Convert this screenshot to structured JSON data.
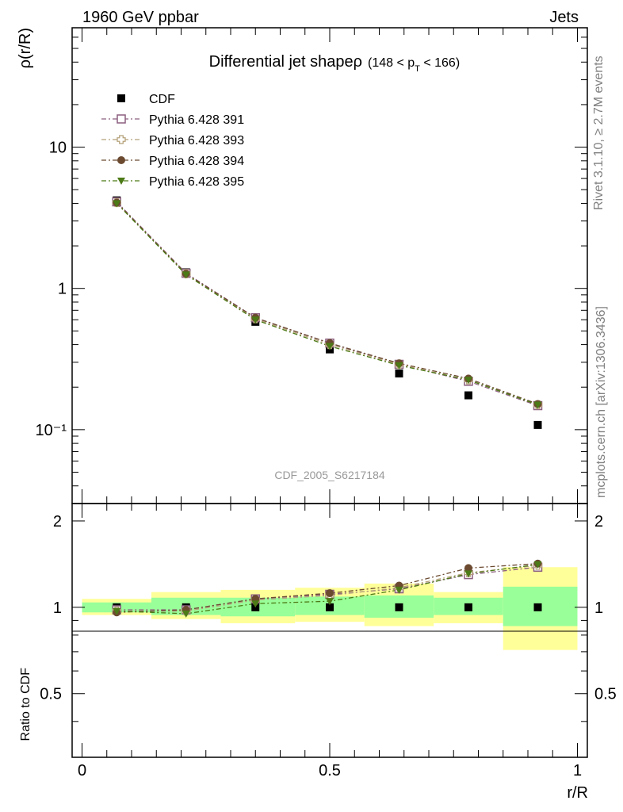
{
  "header": {
    "left": "1960 GeV ppbar",
    "right": "Jets"
  },
  "side_labels": {
    "top": "Rivet 3.1.10, ≥ 2.7M events",
    "bottom": "mcplots.cern.ch [arXiv:1306.3436]"
  },
  "watermark": "CDF_2005_S6217184",
  "colors": {
    "cdf": "#000000",
    "p391": "#8b5f7f",
    "p393": "#b5a27a",
    "p394": "#6b4a30",
    "p395": "#4c7a16",
    "band_yellow": "#ffff99",
    "band_green": "#99ff99"
  },
  "chart_data": {
    "type": "line",
    "title": "Differential jet shapeρ",
    "title_range": "(148 < p_T < 166)",
    "xlabel": "r/R",
    "ylabel": "ρ(r/R)",
    "ratio_ylabel": "Ratio to CDF",
    "xlim": [
      -0.02,
      1.02
    ],
    "ylim": [
      0.03,
      70
    ],
    "ylog": true,
    "ratio_ylim": [
      0.3,
      2.3
    ],
    "ratio_ylog": true,
    "x_ticks": [
      "0",
      "0.5",
      "1"
    ],
    "y_ticks": [
      "10⁻¹",
      "1",
      "10"
    ],
    "ratio_ticks": [
      "0.5",
      "1",
      "2"
    ],
    "legend_position": "top-left",
    "x": [
      0.07,
      0.21,
      0.35,
      0.5,
      0.64,
      0.78,
      0.92
    ],
    "bin_edges": [
      0.0,
      0.14,
      0.28,
      0.43,
      0.57,
      0.71,
      0.85,
      1.0
    ],
    "series": [
      {
        "name": "CDF",
        "marker": "square-filled",
        "color": "#000000",
        "values": [
          4.2,
          1.3,
          0.58,
          0.37,
          0.25,
          0.175,
          0.108
        ],
        "ratio": [
          1.0,
          1.0,
          1.0,
          1.0,
          1.0,
          1.0,
          1.0
        ]
      },
      {
        "name": "Pythia 6.428 391",
        "marker": "square-open",
        "color": "#8b5f7f",
        "values": [
          4.1,
          1.28,
          0.62,
          0.41,
          0.29,
          0.22,
          0.148
        ],
        "ratio": [
          0.98,
          0.98,
          1.07,
          1.11,
          1.16,
          1.3,
          1.38
        ]
      },
      {
        "name": "Pythia 6.428 393",
        "marker": "cross-open",
        "color": "#b5a27a",
        "values": [
          4.05,
          1.27,
          0.61,
          0.4,
          0.29,
          0.225,
          0.15
        ],
        "ratio": [
          0.97,
          0.97,
          1.06,
          1.1,
          1.17,
          1.32,
          1.4
        ]
      },
      {
        "name": "Pythia 6.428 394",
        "marker": "circle-filled",
        "color": "#6b4a30",
        "values": [
          4.05,
          1.27,
          0.62,
          0.41,
          0.295,
          0.23,
          0.152
        ],
        "ratio": [
          0.96,
          0.98,
          1.07,
          1.12,
          1.19,
          1.37,
          1.42
        ]
      },
      {
        "name": "Pythia 6.428 395",
        "marker": "triangle-down-filled",
        "color": "#4c7a16",
        "values": [
          4.0,
          1.25,
          0.6,
          0.39,
          0.285,
          0.225,
          0.15
        ],
        "ratio": [
          0.97,
          0.95,
          1.03,
          1.05,
          1.15,
          1.31,
          1.41
        ]
      }
    ],
    "bands": {
      "yellow_low": [
        0.94,
        0.91,
        0.88,
        0.89,
        0.86,
        0.88,
        0.71
      ],
      "yellow_high": [
        1.07,
        1.13,
        1.15,
        1.17,
        1.21,
        1.13,
        1.38
      ],
      "green_low": [
        0.96,
        0.94,
        0.93,
        0.94,
        0.92,
        0.94,
        0.86
      ],
      "green_high": [
        1.04,
        1.08,
        1.08,
        1.09,
        1.1,
        1.08,
        1.18
      ]
    }
  }
}
